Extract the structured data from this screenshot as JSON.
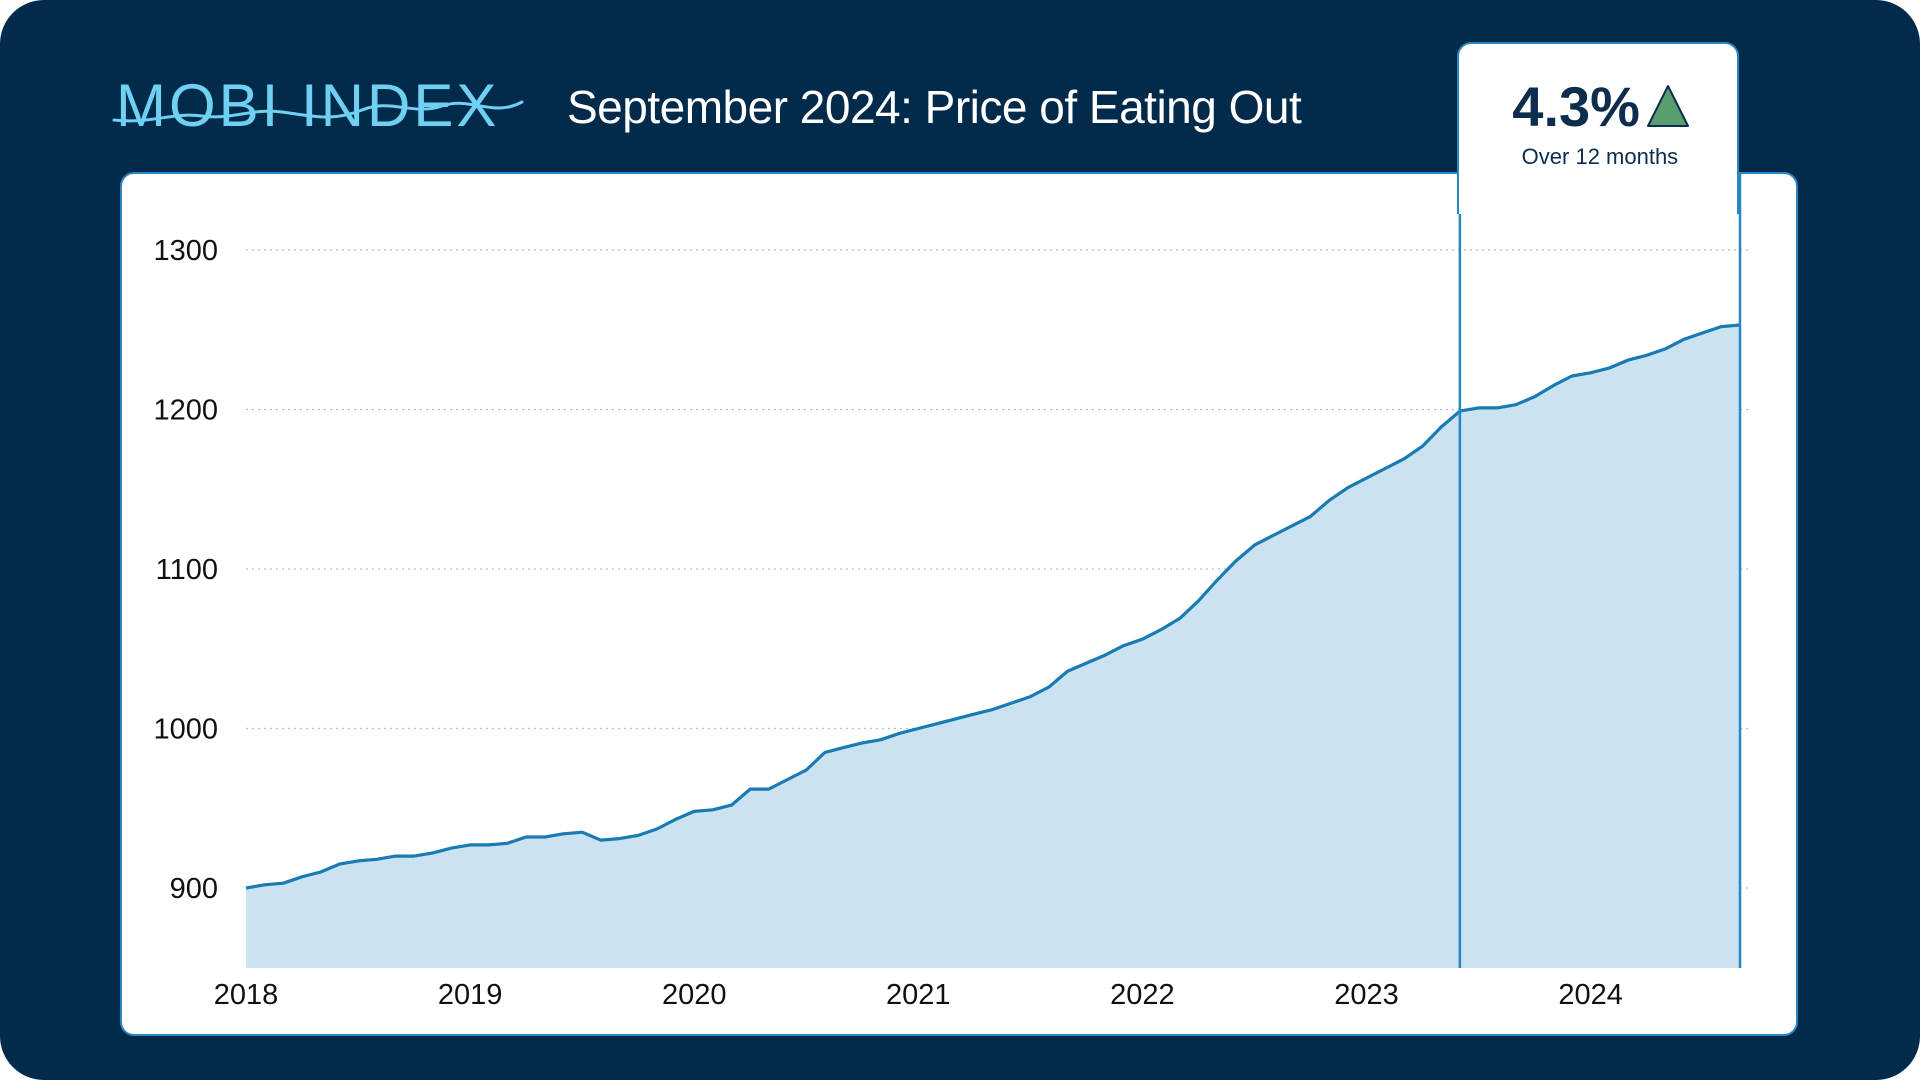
{
  "brand": {
    "name": "MOBI INDEX",
    "color": "#6fd0f2"
  },
  "headline": "September 2024: Price of Eating Out",
  "stat": {
    "value": "4.3%",
    "label": "Over 12 months",
    "direction_icon": "up-triangle-icon",
    "up_color": "#5a9e6f"
  },
  "colors": {
    "background": "#022b4b",
    "line": "#1a7ab3",
    "area": "#cbe3f0",
    "highlight_border": "#2a86c0"
  },
  "chart_data": {
    "type": "area",
    "title": "",
    "xlabel": "",
    "ylabel": "",
    "x_ticks": [
      "2018",
      "2019",
      "2020",
      "2021",
      "2022",
      "2023",
      "2024"
    ],
    "y_ticks": [
      900,
      1000,
      1100,
      1200,
      1300
    ],
    "ylim": [
      850,
      1310
    ],
    "xlim": [
      "2018-01",
      "2024-09"
    ],
    "grid": "horizontal-dotted",
    "highlight_range": [
      "2023-06",
      "2024-09"
    ],
    "series": [
      {
        "values": [
          [
            "2018-01",
            900
          ],
          [
            "2018-02",
            902
          ],
          [
            "2018-03",
            903
          ],
          [
            "2018-04",
            907
          ],
          [
            "2018-05",
            910
          ],
          [
            "2018-06",
            915
          ],
          [
            "2018-07",
            917
          ],
          [
            "2018-08",
            918
          ],
          [
            "2018-09",
            920
          ],
          [
            "2018-10",
            920
          ],
          [
            "2018-11",
            922
          ],
          [
            "2018-12",
            925
          ],
          [
            "2019-01",
            927
          ],
          [
            "2019-02",
            927
          ],
          [
            "2019-03",
            928
          ],
          [
            "2019-04",
            932
          ],
          [
            "2019-05",
            932
          ],
          [
            "2019-06",
            934
          ],
          [
            "2019-07",
            935
          ],
          [
            "2019-08",
            930
          ],
          [
            "2019-09",
            931
          ],
          [
            "2019-10",
            933
          ],
          [
            "2019-11",
            937
          ],
          [
            "2019-12",
            943
          ],
          [
            "2020-01",
            948
          ],
          [
            "2020-02",
            949
          ],
          [
            "2020-03",
            952
          ],
          [
            "2020-04",
            962
          ],
          [
            "2020-05",
            962
          ],
          [
            "2020-06",
            968
          ],
          [
            "2020-07",
            974
          ],
          [
            "2020-08",
            985
          ],
          [
            "2020-09",
            988
          ],
          [
            "2020-10",
            991
          ],
          [
            "2020-11",
            993
          ],
          [
            "2020-12",
            997
          ],
          [
            "2021-01",
            1000
          ],
          [
            "2021-02",
            1003
          ],
          [
            "2021-03",
            1006
          ],
          [
            "2021-04",
            1009
          ],
          [
            "2021-05",
            1012
          ],
          [
            "2021-06",
            1016
          ],
          [
            "2021-07",
            1020
          ],
          [
            "2021-08",
            1026
          ],
          [
            "2021-09",
            1036
          ],
          [
            "2021-10",
            1041
          ],
          [
            "2021-11",
            1046
          ],
          [
            "2021-12",
            1052
          ],
          [
            "2022-01",
            1056
          ],
          [
            "2022-02",
            1062
          ],
          [
            "2022-03",
            1069
          ],
          [
            "2022-04",
            1080
          ],
          [
            "2022-05",
            1093
          ],
          [
            "2022-06",
            1105
          ],
          [
            "2022-07",
            1115
          ],
          [
            "2022-08",
            1121
          ],
          [
            "2022-09",
            1127
          ],
          [
            "2022-10",
            1133
          ],
          [
            "2022-11",
            1143
          ],
          [
            "2022-12",
            1151
          ],
          [
            "2023-01",
            1157
          ],
          [
            "2023-02",
            1163
          ],
          [
            "2023-03",
            1169
          ],
          [
            "2023-04",
            1177
          ],
          [
            "2023-05",
            1189
          ],
          [
            "2023-06",
            1199
          ],
          [
            "2023-07",
            1201
          ],
          [
            "2023-08",
            1201
          ],
          [
            "2023-09",
            1203
          ],
          [
            "2023-10",
            1208
          ],
          [
            "2023-11",
            1215
          ],
          [
            "2023-12",
            1221
          ],
          [
            "2024-01",
            1223
          ],
          [
            "2024-02",
            1226
          ],
          [
            "2024-03",
            1231
          ],
          [
            "2024-04",
            1234
          ],
          [
            "2024-05",
            1238
          ],
          [
            "2024-06",
            1244
          ],
          [
            "2024-07",
            1248
          ],
          [
            "2024-08",
            1252
          ],
          [
            "2024-09",
            1253
          ]
        ]
      }
    ]
  }
}
